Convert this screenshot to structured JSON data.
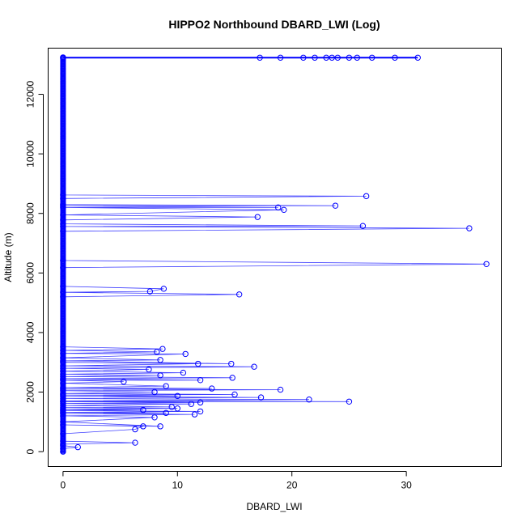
{
  "chart_data": {
    "type": "line",
    "title": "HIPPO2 Northbound DBARD_LWI (Log)",
    "xlabel": "DBARD_LWI",
    "ylabel": "Altitude (m)",
    "xlim": [
      -1.3,
      38.3
    ],
    "ylim": [
      -500,
      13550
    ],
    "x_ticks": [
      0,
      10,
      20,
      30
    ],
    "y_ticks": [
      0,
      2000,
      4000,
      6000,
      8000,
      10000,
      12000
    ],
    "grid": false,
    "colors": {
      "series": "#0000ff"
    },
    "series": [
      {
        "points": [
          [
            0,
            0
          ],
          [
            0,
            100
          ],
          [
            1.3,
            150
          ],
          [
            0,
            200
          ],
          [
            0,
            250
          ],
          [
            6.3,
            300
          ],
          [
            0,
            350
          ],
          [
            0,
            600
          ],
          [
            6.3,
            750
          ],
          [
            7.0,
            850
          ],
          [
            0,
            900
          ],
          [
            8.5,
            850
          ],
          [
            0,
            1000
          ],
          [
            8.0,
            1150
          ],
          [
            0,
            1200
          ],
          [
            11.5,
            1250
          ],
          [
            0,
            1280
          ],
          [
            9.0,
            1300
          ],
          [
            0,
            1320
          ],
          [
            12.0,
            1350
          ],
          [
            0,
            1380
          ],
          [
            7.0,
            1400
          ],
          [
            0,
            1420
          ],
          [
            10.0,
            1450
          ],
          [
            0,
            1480
          ],
          [
            9.5,
            1500
          ],
          [
            0,
            1550
          ],
          [
            11.2,
            1600
          ],
          [
            0,
            1620
          ],
          [
            12.0,
            1650
          ],
          [
            0,
            1680
          ],
          [
            25.0,
            1680
          ],
          [
            0,
            1700
          ],
          [
            21.5,
            1750
          ],
          [
            0,
            1780
          ],
          [
            17.3,
            1820
          ],
          [
            0,
            1850
          ],
          [
            10.0,
            1870
          ],
          [
            0,
            1900
          ],
          [
            15.0,
            1920
          ],
          [
            0,
            1950
          ],
          [
            8.0,
            2000
          ],
          [
            0,
            2050
          ],
          [
            19.0,
            2080
          ],
          [
            0,
            2100
          ],
          [
            13.0,
            2120
          ],
          [
            0,
            2150
          ],
          [
            9.0,
            2200
          ],
          [
            0,
            2300
          ],
          [
            5.3,
            2350
          ],
          [
            0,
            2400
          ],
          [
            12.0,
            2400
          ],
          [
            0,
            2450
          ],
          [
            14.8,
            2480
          ],
          [
            0,
            2520
          ],
          [
            8.5,
            2560
          ],
          [
            0,
            2600
          ],
          [
            10.5,
            2650
          ],
          [
            0,
            2700
          ],
          [
            7.5,
            2760
          ],
          [
            0,
            2800
          ],
          [
            16.7,
            2850
          ],
          [
            0,
            2880
          ],
          [
            11.8,
            2950
          ],
          [
            0,
            3000
          ],
          [
            14.7,
            2950
          ],
          [
            0,
            3050
          ],
          [
            8.5,
            3080
          ],
          [
            0,
            3150
          ],
          [
            10.7,
            3280
          ],
          [
            0,
            3300
          ],
          [
            8.2,
            3350
          ],
          [
            0,
            3400
          ],
          [
            8.7,
            3450
          ],
          [
            0,
            3520
          ],
          [
            0,
            5200
          ],
          [
            15.4,
            5280
          ],
          [
            0,
            5350
          ],
          [
            7.6,
            5380
          ],
          [
            8.8,
            5470
          ],
          [
            0,
            5550
          ],
          [
            0,
            6180
          ],
          [
            37.0,
            6300
          ],
          [
            0,
            6420
          ],
          [
            0,
            7400
          ],
          [
            35.5,
            7500
          ],
          [
            0,
            7560
          ],
          [
            26.2,
            7580
          ],
          [
            0,
            7650
          ],
          [
            0,
            7780
          ],
          [
            17.0,
            7880
          ],
          [
            0,
            7950
          ],
          [
            19.3,
            8120
          ],
          [
            0,
            8200
          ],
          [
            18.8,
            8200
          ],
          [
            0,
            8250
          ],
          [
            23.8,
            8260
          ],
          [
            0,
            8300
          ],
          [
            0,
            8500
          ],
          [
            26.5,
            8580
          ],
          [
            0,
            8620
          ],
          [
            0,
            13220
          ],
          [
            17.2,
            13230
          ],
          [
            19.0,
            13230
          ],
          [
            21.0,
            13230
          ],
          [
            22.0,
            13230
          ],
          [
            23.0,
            13230
          ],
          [
            23.5,
            13230
          ],
          [
            24.0,
            13230
          ],
          [
            25.0,
            13230
          ],
          [
            25.7,
            13230
          ],
          [
            27.0,
            13230
          ],
          [
            29.0,
            13230
          ],
          [
            31.0,
            13230
          ],
          [
            0,
            13240
          ]
        ]
      }
    ]
  }
}
